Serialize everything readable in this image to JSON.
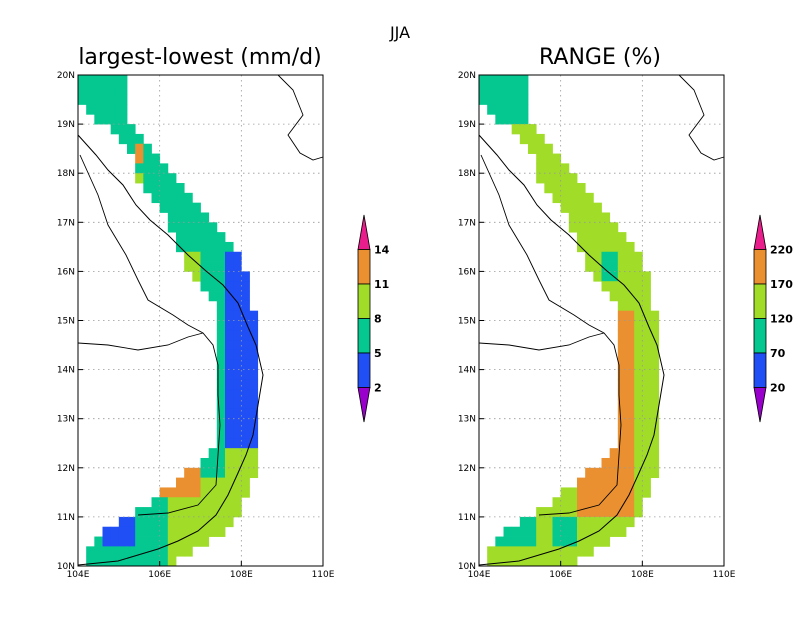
{
  "title": "JJA",
  "panels": [
    {
      "title": "largest-lowest (mm/d)",
      "colorbar_ticks": [
        "2",
        "5",
        "8",
        "11",
        "14"
      ],
      "colors": {
        "lt2": "#9900cc",
        "b2_5": "#1f4ff5",
        "b5_8": "#05c890",
        "b8_11": "#a0dc28",
        "b11_14": "#ea9030",
        "gt14": "#ea1d8c"
      }
    },
    {
      "title": "RANGE (%)",
      "colorbar_ticks": [
        "20",
        "70",
        "120",
        "170",
        "220"
      ],
      "colors": {
        "lt2": "#9900cc",
        "b2_5": "#1f4ff5",
        "b5_8": "#05c890",
        "b8_11": "#a0dc28",
        "b11_14": "#ea9030",
        "gt14": "#ea1d8c"
      }
    }
  ],
  "axes": {
    "x_ticks": [
      "104E",
      "106E",
      "108E",
      "110E"
    ],
    "y_ticks": [
      "10N",
      "11N",
      "12N",
      "13N",
      "14N",
      "15N",
      "16N",
      "17N",
      "18N",
      "19N",
      "20N"
    ],
    "lon_range": [
      104,
      110
    ],
    "lat_range": [
      10,
      20
    ]
  }
}
